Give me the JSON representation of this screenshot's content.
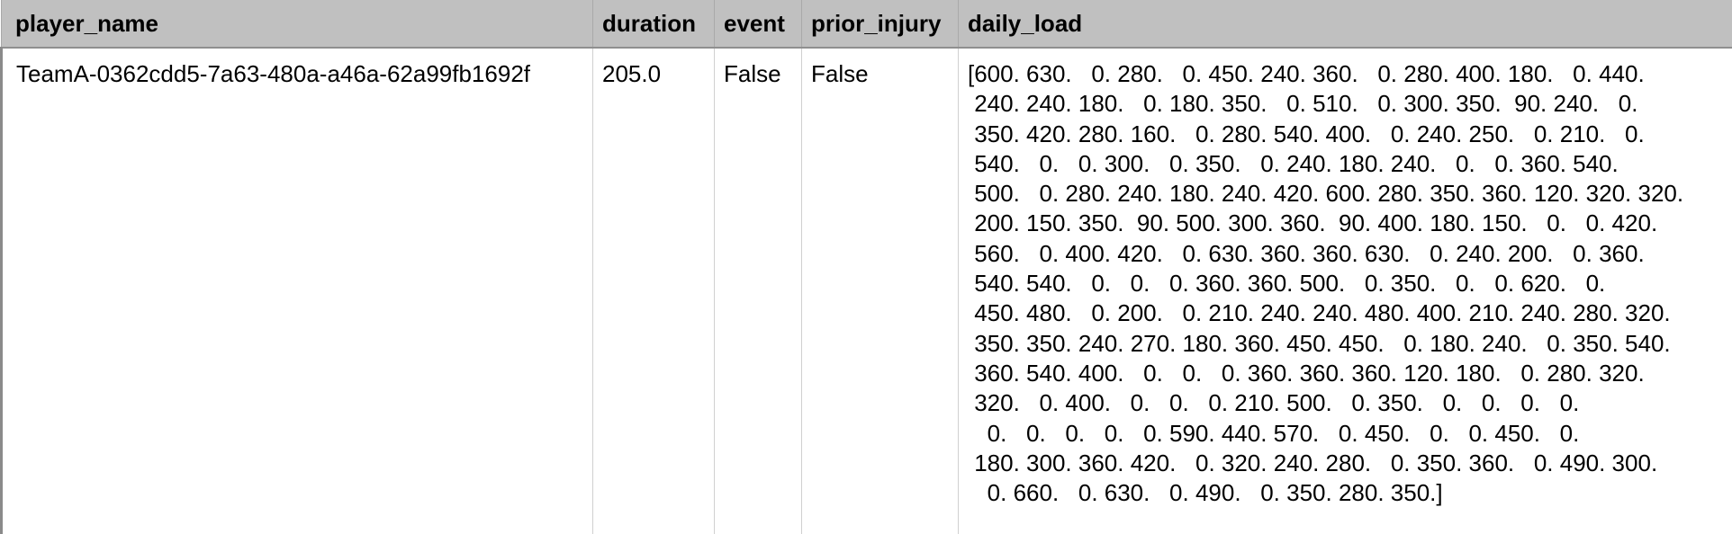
{
  "table": {
    "columns": [
      "player_name",
      "duration",
      "event",
      "prior_injury",
      "daily_load"
    ],
    "rows": [
      {
        "player_name": "TeamA-0362cdd5-7a63-480a-a46a-62a99fb1692f",
        "duration": "205.0",
        "event": "False",
        "prior_injury": "False",
        "daily_load": "[600. 630.   0. 280.   0. 450. 240. 360.   0. 280. 400. 180.   0. 440.\n 240. 240. 180.   0. 180. 350.   0. 510.   0. 300. 350.  90. 240.   0.\n 350. 420. 280. 160.   0. 280. 540. 400.   0. 240. 250.   0. 210.   0.\n 540.   0.   0. 300.   0. 350.   0. 240. 180. 240.   0.   0. 360. 540.\n 500.   0. 280. 240. 180. 240. 420. 600. 280. 350. 360. 120. 320. 320.\n 200. 150. 350.  90. 500. 300. 360.  90. 400. 180. 150.   0.   0. 420.\n 560.   0. 400. 420.   0. 630. 360. 360. 630.   0. 240. 200.   0. 360.\n 540. 540.   0.   0.   0. 360. 360. 500.   0. 350.   0.   0. 620.   0.\n 450. 480.   0. 200.   0. 210. 240. 240. 480. 400. 210. 240. 280. 320.\n 350. 350. 240. 270. 180. 360. 450. 450.   0. 180. 240.   0. 350. 540.\n 360. 540. 400.   0.   0.   0. 360. 360. 360. 120. 180.   0. 280. 320.\n 320.   0. 400.   0.   0.   0. 210. 500.   0. 350.   0.   0.   0.   0.\n   0.   0.   0.   0.   0. 590. 440. 570.   0. 450.   0.   0. 450.   0.\n 180. 300. 360. 420.   0. 320. 240. 280.   0. 350. 360.   0. 490. 300.\n   0. 660.   0. 630.   0. 490.   0. 350. 280. 350.]"
      }
    ]
  }
}
